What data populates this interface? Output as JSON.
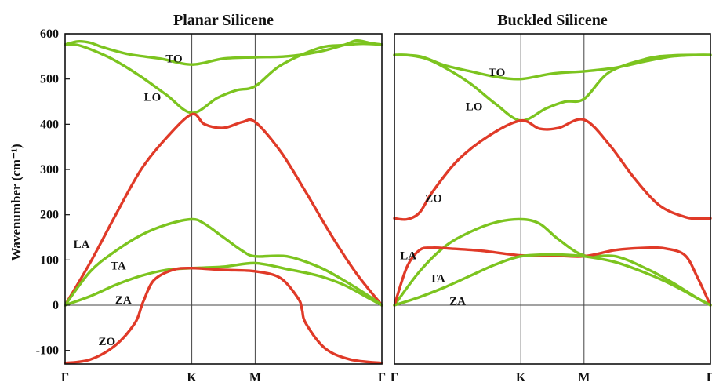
{
  "colors": {
    "optical": "#7cc41f",
    "red": "#e03a28",
    "axis": "#111111"
  },
  "ylabel": "Wavenumber (cm⁻¹)",
  "chart_data": [
    {
      "type": "line",
      "title": "Planar Silicene",
      "ylabel": "Wavenumber (cm⁻¹)",
      "ylim": [
        -130,
        600
      ],
      "yticks": [
        {
          "value": 600,
          "label": "600"
        },
        {
          "value": 500,
          "label": "500"
        },
        {
          "value": 400,
          "label": "400"
        },
        {
          "value": 300,
          "label": "300"
        },
        {
          "value": 200,
          "label": "200"
        },
        {
          "value": 100,
          "label": "100"
        },
        {
          "value": 0,
          "label": "0"
        },
        {
          "value": -100,
          "label": "-100"
        }
      ],
      "xlim": [
        0,
        2.5
      ],
      "xticks": [
        {
          "value": 0,
          "label": "Γ"
        },
        {
          "value": 1,
          "label": "K"
        },
        {
          "value": 1.5,
          "label": "M"
        },
        {
          "value": 2.5,
          "label": "Γ"
        }
      ],
      "grid": false,
      "series": [
        {
          "color": "green",
          "x": [
            0,
            0.1,
            0.2,
            0.3,
            0.5,
            0.75,
            1.0,
            1.25,
            1.5,
            1.75,
            2.0,
            2.2,
            2.3,
            2.4,
            2.5
          ],
          "y": [
            576,
            583,
            580,
            570,
            555,
            545,
            532,
            545,
            548,
            550,
            560,
            575,
            585,
            580,
            576
          ]
        },
        {
          "color": "green",
          "x": [
            0,
            0.1,
            0.25,
            0.4,
            0.6,
            0.8,
            1.0,
            1.2,
            1.35,
            1.5,
            1.7,
            2.0,
            2.2,
            2.35,
            2.5
          ],
          "y": [
            576,
            575,
            560,
            540,
            505,
            465,
            425,
            458,
            475,
            484,
            530,
            568,
            575,
            578,
            576
          ]
        },
        {
          "color": "red",
          "x": [
            0,
            0.2,
            0.4,
            0.6,
            0.8,
            1.0,
            1.1,
            1.25,
            1.4,
            1.5,
            1.7,
            1.9,
            2.1,
            2.3,
            2.5
          ],
          "y": [
            0,
            95,
            200,
            300,
            370,
            422,
            400,
            392,
            405,
            405,
            340,
            250,
            155,
            70,
            0
          ]
        },
        {
          "color": "green",
          "x": [
            0,
            0.2,
            0.4,
            0.6,
            0.8,
            1.0,
            1.1,
            1.25,
            1.4,
            1.5,
            1.75,
            2.0,
            2.2,
            2.4,
            2.5
          ],
          "y": [
            0,
            75,
            120,
            155,
            178,
            190,
            180,
            150,
            120,
            108,
            108,
            85,
            55,
            20,
            0
          ]
        },
        {
          "color": "green",
          "x": [
            0,
            0.2,
            0.4,
            0.6,
            0.8,
            1.0,
            1.25,
            1.5,
            1.75,
            2.0,
            2.2,
            2.4,
            2.5
          ],
          "y": [
            0,
            20,
            45,
            65,
            78,
            82,
            85,
            93,
            80,
            65,
            45,
            15,
            0
          ]
        },
        {
          "color": "red",
          "x": [
            0,
            0.2,
            0.4,
            0.55,
            0.6,
            0.62,
            0.7,
            0.85,
            1.0,
            1.25,
            1.5,
            1.7,
            1.84,
            1.87,
            1.9,
            2.05,
            2.25,
            2.5
          ],
          "y": [
            -128,
            -120,
            -88,
            -40,
            -5,
            10,
            55,
            78,
            82,
            78,
            75,
            60,
            15,
            -10,
            -40,
            -95,
            -120,
            -128
          ]
        }
      ],
      "annotations": [
        {
          "text": "TO",
          "x": 0.86,
          "y": 545
        },
        {
          "text": "LO",
          "x": 0.69,
          "y": 460
        },
        {
          "text": "LA",
          "x": 0.13,
          "y": 135
        },
        {
          "text": "TA",
          "x": 0.42,
          "y": 88
        },
        {
          "text": "ZA",
          "x": 0.46,
          "y": 12
        },
        {
          "text": "ZO",
          "x": 0.33,
          "y": -80
        }
      ]
    },
    {
      "type": "line",
      "title": "Buckled Silicene",
      "ylim": [
        -130,
        600
      ],
      "xlim": [
        0,
        2.5
      ],
      "xticks": [
        {
          "value": 0,
          "label": "Γ"
        },
        {
          "value": 1,
          "label": "K"
        },
        {
          "value": 1.5,
          "label": "M"
        },
        {
          "value": 2.5,
          "label": "Γ"
        }
      ],
      "grid": false,
      "series": [
        {
          "color": "green",
          "x": [
            0,
            0.2,
            0.4,
            0.6,
            0.8,
            1.0,
            1.25,
            1.5,
            1.75,
            2.0,
            2.2,
            2.4,
            2.5
          ],
          "y": [
            553,
            550,
            530,
            517,
            505,
            500,
            512,
            517,
            525,
            540,
            550,
            553,
            553
          ]
        },
        {
          "color": "green",
          "x": [
            0,
            0.1,
            0.25,
            0.4,
            0.6,
            0.8,
            1.0,
            1.2,
            1.35,
            1.5,
            1.7,
            2.0,
            2.2,
            2.4,
            2.5
          ],
          "y": [
            553,
            553,
            545,
            525,
            490,
            445,
            408,
            435,
            450,
            456,
            515,
            545,
            552,
            553,
            553
          ]
        },
        {
          "color": "red",
          "x": [
            0,
            0.1,
            0.2,
            0.3,
            0.5,
            0.75,
            1.0,
            1.15,
            1.3,
            1.5,
            1.7,
            1.9,
            2.1,
            2.3,
            2.4,
            2.5
          ],
          "y": [
            192,
            190,
            205,
            250,
            320,
            375,
            408,
            390,
            392,
            410,
            355,
            280,
            220,
            195,
            192,
            192
          ]
        },
        {
          "color": "green",
          "x": [
            0,
            0.2,
            0.4,
            0.6,
            0.8,
            1.0,
            1.15,
            1.3,
            1.5,
            1.75,
            2.0,
            2.2,
            2.4,
            2.5
          ],
          "y": [
            0,
            75,
            130,
            162,
            183,
            190,
            180,
            145,
            110,
            108,
            80,
            50,
            15,
            0
          ]
        },
        {
          "color": "red",
          "x": [
            0,
            0.1,
            0.2,
            0.3,
            0.45,
            0.7,
            1.0,
            1.25,
            1.5,
            1.75,
            2.0,
            2.15,
            2.3,
            2.4,
            2.5
          ],
          "y": [
            0,
            85,
            122,
            127,
            125,
            120,
            110,
            110,
            108,
            122,
            127,
            125,
            110,
            60,
            0
          ]
        },
        {
          "color": "green",
          "x": [
            0,
            0.2,
            0.4,
            0.6,
            0.8,
            1.0,
            1.25,
            1.5,
            1.75,
            2.0,
            2.2,
            2.4,
            2.5
          ],
          "y": [
            0,
            18,
            40,
            65,
            90,
            108,
            112,
            108,
            95,
            70,
            45,
            15,
            0
          ]
        }
      ],
      "annotations": [
        {
          "text": "TO",
          "x": 0.81,
          "y": 515
        },
        {
          "text": "LO",
          "x": 0.63,
          "y": 440
        },
        {
          "text": "ZO",
          "x": 0.31,
          "y": 237
        },
        {
          "text": "LA",
          "x": 0.11,
          "y": 110
        },
        {
          "text": "TA",
          "x": 0.34,
          "y": 60
        },
        {
          "text": "ZA",
          "x": 0.5,
          "y": 10
        }
      ]
    }
  ]
}
